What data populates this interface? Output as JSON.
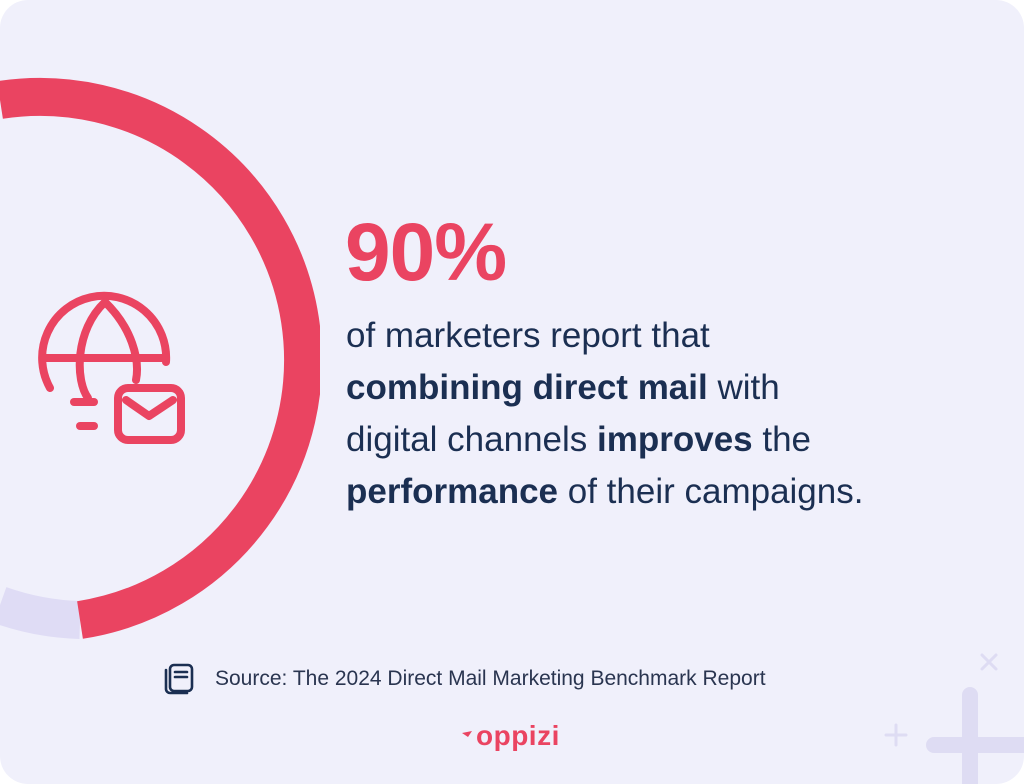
{
  "colors": {
    "accent": "#ea4461",
    "text": "#1b2f52",
    "background": "#f0f0fb",
    "track": "#dfdcf5"
  },
  "stat": {
    "value": "90%",
    "line1": "of marketers report that",
    "line2_bold": "combining direct mail",
    "line2_rest": " with",
    "line3_start": "digital channels ",
    "line3_bold": "improves",
    "line3_rest": " the",
    "line4_bold": "performance",
    "line4_rest": " of their campaigns."
  },
  "gauge": {
    "fill_fraction": 0.9
  },
  "icons": {
    "hero": "globe-mail-icon",
    "source": "document-icon",
    "brand": "oppizi-logo"
  },
  "source": {
    "text": "Source: The 2024 Direct Mail Marketing Benchmark Report"
  },
  "brand": {
    "name": "oppizi"
  }
}
